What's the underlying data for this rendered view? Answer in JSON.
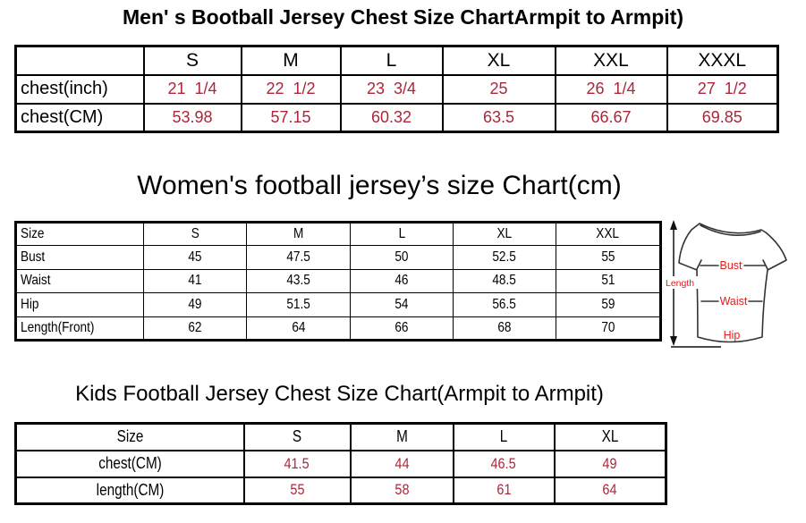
{
  "colors": {
    "value_red": "#ad2539",
    "diagram_red": "#e11e1e",
    "border_black": "#000000"
  },
  "men_chart": {
    "title": "Men' s Bootball Jersey Chest Size ChartArmpit to Armpit)",
    "columns": [
      "",
      "S",
      "M",
      "L",
      "XL",
      "XXL",
      "XXXL"
    ],
    "rows": [
      {
        "label": "chest(inch)",
        "values": [
          "21  1/4",
          "22  1/2",
          "23  3/4",
          "25",
          "26  1/4",
          "27  1/2"
        ]
      },
      {
        "label": "chest(CM)",
        "values": [
          "53.98",
          "57.15",
          "60.32",
          "63.5",
          "66.67",
          "69.85"
        ]
      }
    ]
  },
  "women_chart": {
    "title": "Women's football jersey’s size Chart(cm)",
    "columns": [
      "Size",
      "S",
      "M",
      "L",
      "XL",
      "XXL"
    ],
    "rows": [
      {
        "label": "Bust",
        "values": [
          "45",
          "47.5",
          "50",
          "52.5",
          "55"
        ]
      },
      {
        "label": "Waist",
        "values": [
          "41",
          "43.5",
          "46",
          "48.5",
          "51"
        ]
      },
      {
        "label": "Hip",
        "values": [
          "49",
          "51.5",
          "54",
          "56.5",
          "59"
        ]
      },
      {
        "label": "Length(Front)",
        "values": [
          "62",
          "64",
          "66",
          "68",
          "70"
        ]
      }
    ]
  },
  "kids_chart": {
    "title": "Kids Football Jersey Chest Size Chart(Armpit to Armpit)",
    "columns": [
      "Size",
      "S",
      "M",
      "L",
      "XL"
    ],
    "rows": [
      {
        "label": "chest(CM)",
        "values": [
          "41.5",
          "44",
          "46.5",
          "49"
        ]
      },
      {
        "label": "length(CM)",
        "values": [
          "55",
          "58",
          "61",
          "64"
        ]
      }
    ]
  },
  "diagram": {
    "length_label": "Length",
    "bust_label": "Bust",
    "waist_label": "Waist",
    "hip_label": "Hip"
  }
}
